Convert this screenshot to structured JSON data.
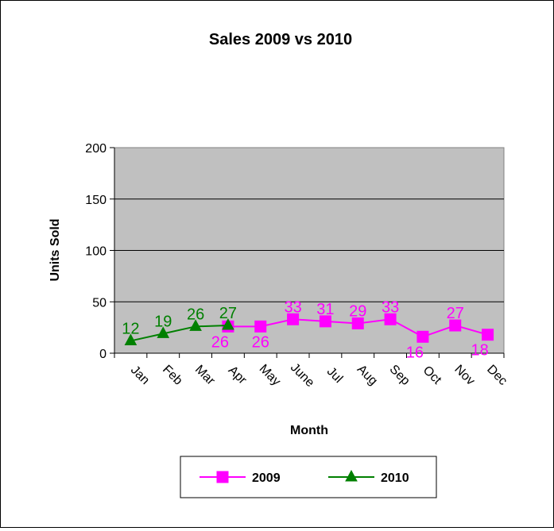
{
  "chart_data": {
    "type": "line",
    "title": "Sales 2009 vs 2010",
    "xlabel": "Month",
    "ylabel": "Units Sold",
    "ylim": [
      0,
      200
    ],
    "yticks": [
      0,
      50,
      100,
      150,
      200
    ],
    "grid": true,
    "legend_position": "bottom",
    "plot_background": "#c0c0c0",
    "categories": [
      "Jan",
      "Feb",
      "Mar",
      "Apr",
      "May",
      "June",
      "Jul",
      "Aug",
      "Sep",
      "Oct",
      "Nov",
      "Dec"
    ],
    "series": [
      {
        "name": "2009",
        "color": "#ff00ff",
        "marker": "square",
        "points": [
          {
            "x": "Apr",
            "y": 26
          },
          {
            "x": "May",
            "y": 26
          },
          {
            "x": "June",
            "y": 33
          },
          {
            "x": "Jul",
            "y": 31
          },
          {
            "x": "Aug",
            "y": 29
          },
          {
            "x": "Sep",
            "y": 33
          },
          {
            "x": "Oct",
            "y": 16
          },
          {
            "x": "Nov",
            "y": 27
          },
          {
            "x": "Dec",
            "y": 18
          }
        ]
      },
      {
        "name": "2010",
        "color": "#008000",
        "marker": "triangle",
        "points": [
          {
            "x": "Jan",
            "y": 12
          },
          {
            "x": "Feb",
            "y": 19
          },
          {
            "x": "Mar",
            "y": 26
          },
          {
            "x": "Apr",
            "y": 27
          }
        ]
      }
    ]
  }
}
